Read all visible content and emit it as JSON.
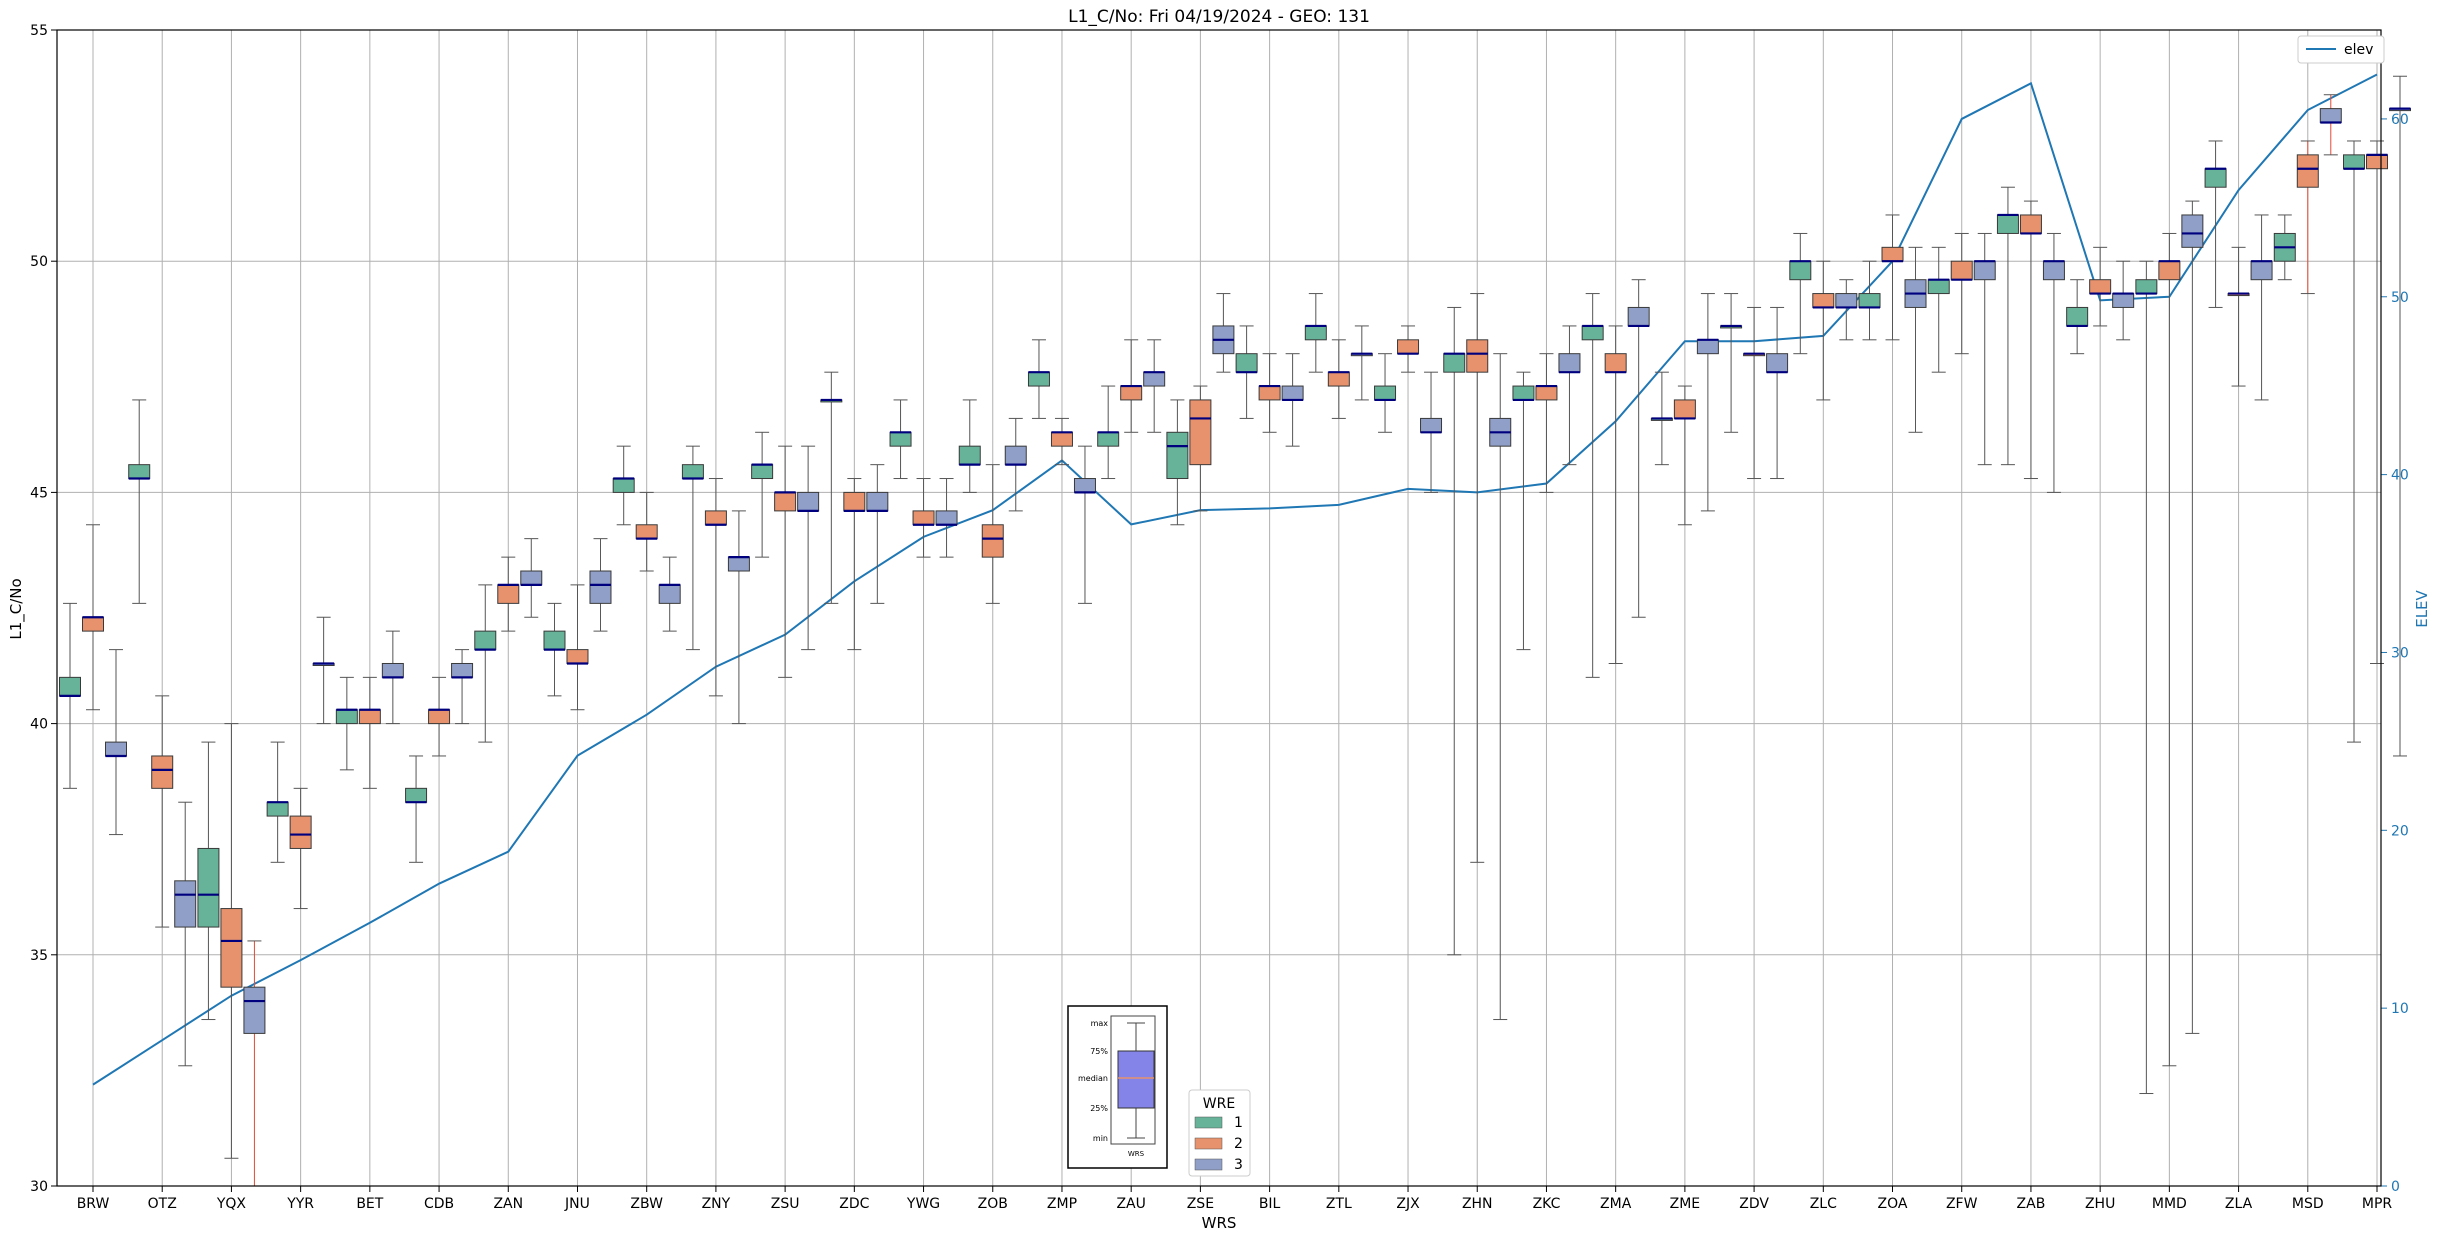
{
  "title": "L1_C/No: Fri 04/19/2024 - GEO: 131",
  "colors": {
    "wre1": "#66b399",
    "wre2": "#e7926c",
    "wre3": "#8f9fc7",
    "median": "#00007f",
    "elev": "#1f77b4",
    "outlier_whisker": "#e34a33",
    "whisker": "#555555",
    "grid": "#b0b0b0"
  },
  "chart_data": {
    "type": "box",
    "xlabel": "WRS",
    "ylabel": "L1_C/No",
    "y2label": "ELEV",
    "ylim": [
      30,
      55
    ],
    "y2lim": [
      0,
      65
    ],
    "yticks": [
      30,
      35,
      40,
      45,
      50,
      55
    ],
    "y2ticks": [
      0,
      10,
      20,
      30,
      40,
      50,
      60
    ],
    "grid": true,
    "categories": [
      "BRW",
      "OTZ",
      "YQX",
      "YYR",
      "BET",
      "CDB",
      "ZAN",
      "JNU",
      "ZBW",
      "ZNY",
      "ZSU",
      "ZDC",
      "YWG",
      "ZOB",
      "ZMP",
      "ZAU",
      "ZSE",
      "BIL",
      "ZTL",
      "ZJX",
      "ZHN",
      "ZKC",
      "ZMA",
      "ZME",
      "ZDV",
      "ZLC",
      "ZOA",
      "ZFW",
      "ZAB",
      "ZHU",
      "MMD",
      "ZLA",
      "MSD",
      "MPR"
    ],
    "legend_box": {
      "title": "WRE",
      "position": "lower-center",
      "entries": [
        "1",
        "2",
        "3"
      ]
    },
    "legend_line": {
      "position": "top-right",
      "entries": [
        "elev"
      ]
    },
    "box_key": {
      "labels": [
        "max",
        "75%",
        "median",
        "25%",
        "min"
      ],
      "xlabel": "WRS"
    },
    "elev": [
      5.7,
      8.2,
      10.7,
      12.7,
      14.8,
      17.0,
      18.8,
      24.2,
      26.5,
      29.2,
      31.0,
      34.0,
      36.5,
      38.0,
      40.8,
      37.2,
      38.0,
      38.1,
      38.3,
      39.2,
      39.0,
      39.5,
      43.0,
      47.5,
      47.5,
      47.8,
      52.0,
      60.0,
      62.0,
      49.8,
      50.0,
      56.0,
      60.5,
      62.5
    ],
    "elev_x": [
      0,
      1,
      2,
      3,
      4,
      5,
      6,
      7,
      8,
      9,
      10,
      11,
      12,
      13,
      14,
      15,
      16,
      17,
      18,
      19,
      20,
      21,
      22,
      23,
      24,
      25,
      26,
      27,
      28,
      29,
      30,
      31,
      32,
      33
    ],
    "elev_values": [
      5.7,
      8.2,
      10.7,
      12.7,
      14.8,
      17.0,
      18.8,
      24.2,
      26.5,
      29.2,
      31.0,
      34.0,
      36.5,
      38.0,
      40.8,
      37.2,
      38.0,
      38.1,
      38.3,
      39.2,
      39.0,
      39.5,
      43.0,
      47.5,
      47.5,
      47.8,
      52.0,
      60.0,
      62.0,
      49.8,
      50.0,
      56.0,
      60.5,
      62.5
    ],
    "boxes": [
      {
        "x": "BRW",
        "wre": 1,
        "min": 38.6,
        "q1": 40.6,
        "median": 40.6,
        "q3": 41.0,
        "max": 42.6
      },
      {
        "x": "BRW",
        "wre": 2,
        "min": 40.3,
        "q1": 42.0,
        "median": 42.3,
        "q3": 42.3,
        "max": 44.3
      },
      {
        "x": "BRW",
        "wre": 3,
        "min": 37.6,
        "q1": 39.3,
        "median": 39.3,
        "q3": 39.6,
        "max": 41.6
      },
      {
        "x": "OTZ",
        "wre": 1,
        "min": 42.6,
        "q1": 45.3,
        "median": 45.3,
        "q3": 45.6,
        "max": 47.0
      },
      {
        "x": "OTZ",
        "wre": 2,
        "min": 35.6,
        "q1": 38.6,
        "median": 39.0,
        "q3": 39.3,
        "max": 40.6
      },
      {
        "x": "OTZ",
        "wre": 3,
        "min": 32.6,
        "q1": 35.6,
        "median": 36.3,
        "q3": 36.6,
        "max": 38.3
      },
      {
        "x": "YQX",
        "wre": 1,
        "min": 33.6,
        "q1": 35.6,
        "median": 36.3,
        "q3": 37.3,
        "max": 39.6
      },
      {
        "x": "YQX",
        "wre": 2,
        "min": 30.6,
        "q1": 34.3,
        "median": 35.3,
        "q3": 36.0,
        "max": 40.0
      },
      {
        "x": "YQX",
        "wre": 3,
        "min": 30.0,
        "q1": 33.3,
        "median": 34.0,
        "q3": 34.3,
        "max": 35.3,
        "outlier": true
      },
      {
        "x": "YYR",
        "wre": 1,
        "min": 37.0,
        "q1": 38.0,
        "median": 38.3,
        "q3": 38.3,
        "max": 39.6
      },
      {
        "x": "YYR",
        "wre": 2,
        "min": 36.0,
        "q1": 37.3,
        "median": 37.6,
        "q3": 38.0,
        "max": 38.6
      },
      {
        "x": "YYR",
        "wre": 3,
        "min": 40.0,
        "q1": 41.3,
        "median": 41.3,
        "q3": 41.3,
        "max": 42.3
      },
      {
        "x": "BET",
        "wre": 1,
        "min": 39.0,
        "q1": 40.0,
        "median": 40.3,
        "q3": 40.3,
        "max": 41.0
      },
      {
        "x": "BET",
        "wre": 2,
        "min": 38.6,
        "q1": 40.0,
        "median": 40.3,
        "q3": 40.3,
        "max": 41.0
      },
      {
        "x": "BET",
        "wre": 3,
        "min": 40.0,
        "q1": 41.0,
        "median": 41.0,
        "q3": 41.3,
        "max": 42.0
      },
      {
        "x": "CDB",
        "wre": 1,
        "min": 37.0,
        "q1": 38.3,
        "median": 38.3,
        "q3": 38.6,
        "max": 39.3
      },
      {
        "x": "CDB",
        "wre": 2,
        "min": 39.3,
        "q1": 40.0,
        "median": 40.3,
        "q3": 40.3,
        "max": 41.0
      },
      {
        "x": "CDB",
        "wre": 3,
        "min": 40.0,
        "q1": 41.0,
        "median": 41.0,
        "q3": 41.3,
        "max": 41.6
      },
      {
        "x": "ZAN",
        "wre": 1,
        "min": 39.6,
        "q1": 41.6,
        "median": 41.6,
        "q3": 42.0,
        "max": 43.0
      },
      {
        "x": "ZAN",
        "wre": 2,
        "min": 42.0,
        "q1": 42.6,
        "median": 43.0,
        "q3": 43.0,
        "max": 43.6
      },
      {
        "x": "ZAN",
        "wre": 3,
        "min": 42.3,
        "q1": 43.0,
        "median": 43.0,
        "q3": 43.3,
        "max": 44.0
      },
      {
        "x": "JNU",
        "wre": 1,
        "min": 40.6,
        "q1": 41.6,
        "median": 41.6,
        "q3": 42.0,
        "max": 42.6
      },
      {
        "x": "JNU",
        "wre": 2,
        "min": 40.3,
        "q1": 41.3,
        "median": 41.3,
        "q3": 41.6,
        "max": 43.0
      },
      {
        "x": "JNU",
        "wre": 3,
        "min": 42.0,
        "q1": 42.6,
        "median": 43.0,
        "q3": 43.3,
        "max": 44.0
      },
      {
        "x": "ZBW",
        "wre": 1,
        "min": 44.3,
        "q1": 45.0,
        "median": 45.3,
        "q3": 45.3,
        "max": 46.0
      },
      {
        "x": "ZBW",
        "wre": 2,
        "min": 43.3,
        "q1": 44.0,
        "median": 44.0,
        "q3": 44.3,
        "max": 45.0
      },
      {
        "x": "ZBW",
        "wre": 3,
        "min": 42.0,
        "q1": 42.6,
        "median": 43.0,
        "q3": 43.0,
        "max": 43.6
      },
      {
        "x": "ZNY",
        "wre": 1,
        "min": 41.6,
        "q1": 45.3,
        "median": 45.3,
        "q3": 45.6,
        "max": 46.0
      },
      {
        "x": "ZNY",
        "wre": 2,
        "min": 40.6,
        "q1": 44.3,
        "median": 44.3,
        "q3": 44.6,
        "max": 45.3
      },
      {
        "x": "ZNY",
        "wre": 3,
        "min": 40.0,
        "q1": 43.3,
        "median": 43.6,
        "q3": 43.6,
        "max": 44.6
      },
      {
        "x": "ZSU",
        "wre": 1,
        "min": 43.6,
        "q1": 45.3,
        "median": 45.6,
        "q3": 45.6,
        "max": 46.3
      },
      {
        "x": "ZSU",
        "wre": 2,
        "min": 41.0,
        "q1": 44.6,
        "median": 45.0,
        "q3": 45.0,
        "max": 46.0
      },
      {
        "x": "ZSU",
        "wre": 3,
        "min": 41.6,
        "q1": 44.6,
        "median": 44.6,
        "q3": 45.0,
        "max": 46.0
      },
      {
        "x": "ZDC",
        "wre": 1,
        "min": 42.6,
        "q1": 47.0,
        "median": 47.0,
        "q3": 47.0,
        "max": 47.6
      },
      {
        "x": "ZDC",
        "wre": 2,
        "min": 41.6,
        "q1": 44.6,
        "median": 44.6,
        "q3": 45.0,
        "max": 45.3
      },
      {
        "x": "ZDC",
        "wre": 3,
        "min": 42.6,
        "q1": 44.6,
        "median": 44.6,
        "q3": 45.0,
        "max": 45.6
      },
      {
        "x": "YWG",
        "wre": 1,
        "min": 45.3,
        "q1": 46.0,
        "median": 46.3,
        "q3": 46.3,
        "max": 47.0
      },
      {
        "x": "YWG",
        "wre": 2,
        "min": 43.6,
        "q1": 44.3,
        "median": 44.3,
        "q3": 44.6,
        "max": 45.3
      },
      {
        "x": "YWG",
        "wre": 3,
        "min": 43.6,
        "q1": 44.3,
        "median": 44.3,
        "q3": 44.6,
        "max": 45.3
      },
      {
        "x": "ZOB",
        "wre": 1,
        "min": 45.0,
        "q1": 45.6,
        "median": 45.6,
        "q3": 46.0,
        "max": 47.0
      },
      {
        "x": "ZOB",
        "wre": 2,
        "min": 42.6,
        "q1": 43.6,
        "median": 44.0,
        "q3": 44.3,
        "max": 45.6
      },
      {
        "x": "ZOB",
        "wre": 3,
        "min": 44.6,
        "q1": 45.6,
        "median": 45.6,
        "q3": 46.0,
        "max": 46.6
      },
      {
        "x": "ZMP",
        "wre": 1,
        "min": 46.6,
        "q1": 47.3,
        "median": 47.6,
        "q3": 47.6,
        "max": 48.3
      },
      {
        "x": "ZMP",
        "wre": 2,
        "min": 45.6,
        "q1": 46.0,
        "median": 46.3,
        "q3": 46.3,
        "max": 46.6
      },
      {
        "x": "ZMP",
        "wre": 3,
        "min": 42.6,
        "q1": 45.0,
        "median": 45.0,
        "q3": 45.3,
        "max": 46.0
      },
      {
        "x": "ZAU",
        "wre": 1,
        "min": 45.3,
        "q1": 46.0,
        "median": 46.3,
        "q3": 46.3,
        "max": 47.3
      },
      {
        "x": "ZAU",
        "wre": 2,
        "min": 46.3,
        "q1": 47.0,
        "median": 47.3,
        "q3": 47.3,
        "max": 48.3
      },
      {
        "x": "ZAU",
        "wre": 3,
        "min": 46.3,
        "q1": 47.3,
        "median": 47.6,
        "q3": 47.6,
        "max": 48.3
      },
      {
        "x": "ZSE",
        "wre": 1,
        "min": 44.3,
        "q1": 45.3,
        "median": 46.0,
        "q3": 46.3,
        "max": 47.0
      },
      {
        "x": "ZSE",
        "wre": 2,
        "min": 44.6,
        "q1": 45.6,
        "median": 46.6,
        "q3": 47.0,
        "max": 47.3
      },
      {
        "x": "ZSE",
        "wre": 3,
        "min": 47.6,
        "q1": 48.0,
        "median": 48.3,
        "q3": 48.6,
        "max": 49.3
      },
      {
        "x": "BIL",
        "wre": 1,
        "min": 46.6,
        "q1": 47.6,
        "median": 47.6,
        "q3": 48.0,
        "max": 48.6
      },
      {
        "x": "BIL",
        "wre": 2,
        "min": 46.3,
        "q1": 47.0,
        "median": 47.3,
        "q3": 47.3,
        "max": 48.0
      },
      {
        "x": "BIL",
        "wre": 3,
        "min": 46.0,
        "q1": 47.0,
        "median": 47.0,
        "q3": 47.3,
        "max": 48.0
      },
      {
        "x": "ZTL",
        "wre": 1,
        "min": 47.6,
        "q1": 48.3,
        "median": 48.6,
        "q3": 48.6,
        "max": 49.3
      },
      {
        "x": "ZTL",
        "wre": 2,
        "min": 46.6,
        "q1": 47.3,
        "median": 47.6,
        "q3": 47.6,
        "max": 48.3
      },
      {
        "x": "ZTL",
        "wre": 3,
        "min": 47.0,
        "q1": 48.0,
        "median": 48.0,
        "q3": 48.0,
        "max": 48.6
      },
      {
        "x": "ZJX",
        "wre": 1,
        "min": 46.3,
        "q1": 47.0,
        "median": 47.0,
        "q3": 47.3,
        "max": 48.0
      },
      {
        "x": "ZJX",
        "wre": 2,
        "min": 47.6,
        "q1": 48.0,
        "median": 48.0,
        "q3": 48.3,
        "max": 48.6
      },
      {
        "x": "ZJX",
        "wre": 3,
        "min": 45.0,
        "q1": 46.3,
        "median": 46.3,
        "q3": 46.6,
        "max": 47.6
      },
      {
        "x": "ZHN",
        "wre": 1,
        "min": 35.0,
        "q1": 47.6,
        "median": 48.0,
        "q3": 48.0,
        "max": 49.0
      },
      {
        "x": "ZHN",
        "wre": 2,
        "min": 37.0,
        "q1": 47.6,
        "median": 48.0,
        "q3": 48.3,
        "max": 49.3
      },
      {
        "x": "ZHN",
        "wre": 3,
        "min": 33.6,
        "q1": 46.0,
        "median": 46.3,
        "q3": 46.6,
        "max": 48.0
      },
      {
        "x": "ZKC",
        "wre": 1,
        "min": 41.6,
        "q1": 47.0,
        "median": 47.0,
        "q3": 47.3,
        "max": 47.6
      },
      {
        "x": "ZKC",
        "wre": 2,
        "min": 45.0,
        "q1": 47.0,
        "median": 47.3,
        "q3": 47.3,
        "max": 48.0
      },
      {
        "x": "ZKC",
        "wre": 3,
        "min": 45.6,
        "q1": 47.6,
        "median": 47.6,
        "q3": 48.0,
        "max": 48.6
      },
      {
        "x": "ZMA",
        "wre": 1,
        "min": 41.0,
        "q1": 48.3,
        "median": 48.6,
        "q3": 48.6,
        "max": 49.3
      },
      {
        "x": "ZMA",
        "wre": 2,
        "min": 41.3,
        "q1": 47.6,
        "median": 47.6,
        "q3": 48.0,
        "max": 48.6
      },
      {
        "x": "ZMA",
        "wre": 3,
        "min": 42.3,
        "q1": 48.6,
        "median": 48.6,
        "q3": 49.0,
        "max": 49.6
      },
      {
        "x": "ZME",
        "wre": 1,
        "min": 45.6,
        "q1": 46.6,
        "median": 46.6,
        "q3": 46.6,
        "max": 47.6
      },
      {
        "x": "ZME",
        "wre": 2,
        "min": 44.3,
        "q1": 46.6,
        "median": 46.6,
        "q3": 47.0,
        "max": 47.3
      },
      {
        "x": "ZME",
        "wre": 3,
        "min": 44.6,
        "q1": 48.0,
        "median": 48.3,
        "q3": 48.3,
        "max": 49.3
      },
      {
        "x": "ZDV",
        "wre": 1,
        "min": 46.3,
        "q1": 48.6,
        "median": 48.6,
        "q3": 48.6,
        "max": 49.3
      },
      {
        "x": "ZDV",
        "wre": 2,
        "min": 45.3,
        "q1": 48.0,
        "median": 48.0,
        "q3": 48.0,
        "max": 49.0
      },
      {
        "x": "ZDV",
        "wre": 3,
        "min": 45.3,
        "q1": 47.6,
        "median": 47.6,
        "q3": 48.0,
        "max": 49.0
      },
      {
        "x": "ZLC",
        "wre": 1,
        "min": 48.0,
        "q1": 49.6,
        "median": 50.0,
        "q3": 50.0,
        "max": 50.6
      },
      {
        "x": "ZLC",
        "wre": 2,
        "min": 47.0,
        "q1": 49.0,
        "median": 49.0,
        "q3": 49.3,
        "max": 50.0
      },
      {
        "x": "ZLC",
        "wre": 3,
        "min": 48.3,
        "q1": 49.0,
        "median": 49.0,
        "q3": 49.3,
        "max": 49.6
      },
      {
        "x": "ZOA",
        "wre": 1,
        "min": 48.3,
        "q1": 49.0,
        "median": 49.0,
        "q3": 49.3,
        "max": 50.0
      },
      {
        "x": "ZOA",
        "wre": 2,
        "min": 48.3,
        "q1": 50.0,
        "median": 50.0,
        "q3": 50.3,
        "max": 51.0
      },
      {
        "x": "ZOA",
        "wre": 3,
        "min": 46.3,
        "q1": 49.0,
        "median": 49.3,
        "q3": 49.6,
        "max": 50.3
      },
      {
        "x": "ZFW",
        "wre": 1,
        "min": 47.6,
        "q1": 49.3,
        "median": 49.6,
        "q3": 49.6,
        "max": 50.3
      },
      {
        "x": "ZFW",
        "wre": 2,
        "min": 48.0,
        "q1": 49.6,
        "median": 49.6,
        "q3": 50.0,
        "max": 50.6
      },
      {
        "x": "ZFW",
        "wre": 3,
        "min": 45.6,
        "q1": 49.6,
        "median": 50.0,
        "q3": 50.0,
        "max": 50.6
      },
      {
        "x": "ZAB",
        "wre": 1,
        "min": 45.6,
        "q1": 50.6,
        "median": 51.0,
        "q3": 51.0,
        "max": 51.6
      },
      {
        "x": "ZAB",
        "wre": 2,
        "min": 45.3,
        "q1": 50.6,
        "median": 50.6,
        "q3": 51.0,
        "max": 51.3
      },
      {
        "x": "ZAB",
        "wre": 3,
        "min": 45.0,
        "q1": 49.6,
        "median": 50.0,
        "q3": 50.0,
        "max": 50.6
      },
      {
        "x": "ZHU",
        "wre": 1,
        "min": 48.0,
        "q1": 48.6,
        "median": 48.6,
        "q3": 49.0,
        "max": 49.6
      },
      {
        "x": "ZHU",
        "wre": 2,
        "min": 48.6,
        "q1": 49.3,
        "median": 49.3,
        "q3": 49.6,
        "max": 50.3
      },
      {
        "x": "ZHU",
        "wre": 3,
        "min": 48.3,
        "q1": 49.0,
        "median": 49.3,
        "q3": 49.3,
        "max": 50.0
      },
      {
        "x": "MMD",
        "wre": 1,
        "min": 32.0,
        "q1": 49.3,
        "median": 49.3,
        "q3": 49.6,
        "max": 50.0
      },
      {
        "x": "MMD",
        "wre": 2,
        "min": 32.6,
        "q1": 49.6,
        "median": 50.0,
        "q3": 50.0,
        "max": 50.6
      },
      {
        "x": "MMD",
        "wre": 3,
        "min": 33.3,
        "q1": 50.3,
        "median": 50.6,
        "q3": 51.0,
        "max": 51.3
      },
      {
        "x": "ZLA",
        "wre": 1,
        "min": 49.0,
        "q1": 51.6,
        "median": 52.0,
        "q3": 52.0,
        "max": 52.6
      },
      {
        "x": "ZLA",
        "wre": 2,
        "min": 47.3,
        "q1": 49.3,
        "median": 49.3,
        "q3": 49.3,
        "max": 50.3
      },
      {
        "x": "ZLA",
        "wre": 3,
        "min": 47.0,
        "q1": 49.6,
        "median": 50.0,
        "q3": 50.0,
        "max": 51.0
      },
      {
        "x": "MSD",
        "wre": 1,
        "min": 49.6,
        "q1": 50.0,
        "median": 50.3,
        "q3": 50.6,
        "max": 51.0
      },
      {
        "x": "MSD",
        "wre": 2,
        "min": 49.3,
        "q1": 51.6,
        "median": 52.0,
        "q3": 52.3,
        "max": 52.6,
        "outlier": true
      },
      {
        "x": "MSD",
        "wre": 3,
        "min": 52.3,
        "q1": 53.0,
        "median": 53.0,
        "q3": 53.3,
        "max": 53.6,
        "outlier": true
      },
      {
        "x": "MPR",
        "wre": 1,
        "min": 39.6,
        "q1": 52.0,
        "median": 52.0,
        "q3": 52.3,
        "max": 52.6
      },
      {
        "x": "MPR",
        "wre": 2,
        "min": 41.3,
        "q1": 52.0,
        "median": 52.3,
        "q3": 52.3,
        "max": 52.6
      },
      {
        "x": "MPR",
        "wre": 3,
        "min": 39.3,
        "q1": 53.3,
        "median": 53.3,
        "q3": 53.3,
        "max": 54.0
      }
    ]
  }
}
